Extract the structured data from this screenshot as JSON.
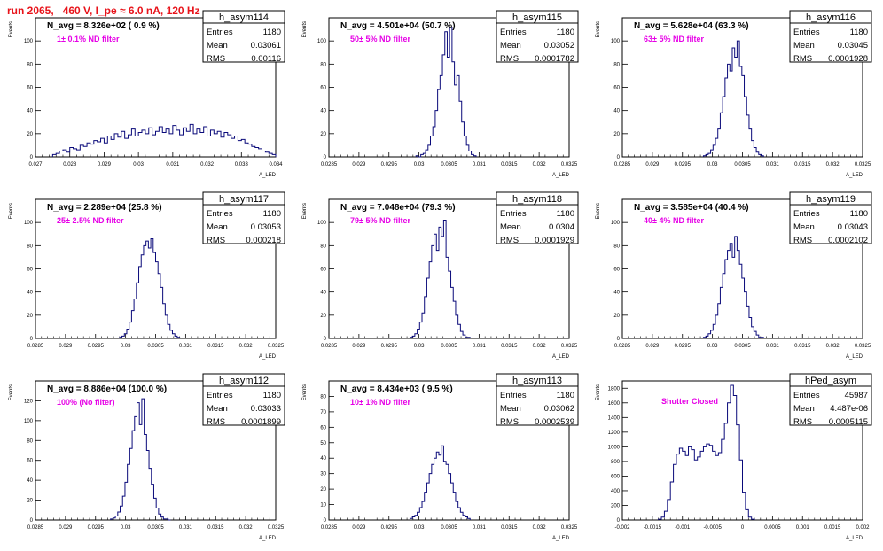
{
  "title": "run 2065,   460 V, I_pe ≈ 6.0 nA, 120 Hz",
  "colors": {
    "hist": "#0a0a7a",
    "annotation": "#e600e6",
    "title": "#e8141b",
    "text": "#000000"
  },
  "chart_data": [
    {
      "type": "histogram",
      "name": "h_asym114",
      "ylabel": "Events",
      "xlabel": "A_LED",
      "navg": "N_avg = 8.326e+02 ( 0.9 %)",
      "note": "1± 0.1% ND filter",
      "stats": [
        [
          "Entries",
          "1180"
        ],
        [
          "Mean",
          "0.03061"
        ],
        [
          "RMS",
          "0.00116"
        ]
      ],
      "xlim": [
        0.027,
        0.034
      ],
      "ylim": [
        0,
        120
      ],
      "xticks": [
        "0.027",
        "0.028",
        "0.029",
        "0.03",
        "0.031",
        "0.032",
        "0.033",
        "0.034"
      ],
      "yticks": [
        "0",
        "20",
        "40",
        "60",
        "80",
        "100"
      ],
      "bins": {
        "start": 0.0275,
        "width": 0.0001,
        "counts": [
          2,
          3,
          5,
          6,
          4,
          8,
          7,
          6,
          10,
          9,
          12,
          11,
          14,
          13,
          16,
          12,
          18,
          15,
          20,
          17,
          22,
          16,
          19,
          24,
          18,
          21,
          23,
          20,
          25,
          19,
          22,
          26,
          21,
          24,
          20,
          27,
          23,
          19,
          25,
          22,
          28,
          20,
          24,
          21,
          26,
          18,
          23,
          20,
          22,
          17,
          21,
          19,
          16,
          18,
          14,
          15,
          12,
          11,
          9,
          8,
          7,
          5,
          4,
          3,
          2
        ]
      }
    },
    {
      "type": "histogram",
      "name": "h_asym115",
      "ylabel": "Events",
      "xlabel": "A_LED",
      "navg": "N_avg = 4.501e+04 (50.7 %)",
      "note": "50± 5% ND filter",
      "stats": [
        [
          "Entries",
          "1180"
        ],
        [
          "Mean",
          "0.03052"
        ],
        [
          "RMS",
          "0.0001782"
        ]
      ],
      "xlim": [
        0.0285,
        0.0325
      ],
      "ylim": [
        0,
        120
      ],
      "xticks": [
        "0.0285",
        "0.029",
        "0.0295",
        "0.03",
        "0.0305",
        "0.031",
        "0.0315",
        "0.032",
        "0.0325"
      ],
      "yticks": [
        "0",
        "20",
        "40",
        "60",
        "80",
        "100"
      ],
      "bins": {
        "start": 0.02995,
        "width": 4e-05,
        "counts": [
          1,
          0,
          2,
          3,
          6,
          10,
          18,
          26,
          40,
          58,
          70,
          88,
          108,
          86,
          112,
          82,
          62,
          70,
          48,
          30,
          18,
          10,
          5,
          2,
          1
        ]
      }
    },
    {
      "type": "histogram",
      "name": "h_asym116",
      "ylabel": "Events",
      "xlabel": "A_LED",
      "navg": "N_avg = 5.628e+04 (63.3 %)",
      "note": "63± 5% ND filter",
      "stats": [
        [
          "Entries",
          "1180"
        ],
        [
          "Mean",
          "0.03045"
        ],
        [
          "RMS",
          "0.0001928"
        ]
      ],
      "xlim": [
        0.0285,
        0.0325
      ],
      "ylim": [
        0,
        120
      ],
      "xticks": [
        "0.0285",
        "0.029",
        "0.0295",
        "0.03",
        "0.0305",
        "0.031",
        "0.0315",
        "0.032",
        "0.0325"
      ],
      "yticks": [
        "0",
        "20",
        "40",
        "60",
        "80",
        "100"
      ],
      "bins": {
        "start": 0.02985,
        "width": 4e-05,
        "counts": [
          1,
          2,
          3,
          6,
          10,
          16,
          24,
          38,
          52,
          68,
          80,
          74,
          94,
          86,
          100,
          78,
          70,
          52,
          36,
          24,
          14,
          8,
          4,
          2,
          1
        ]
      }
    },
    {
      "type": "histogram",
      "name": "h_asym117",
      "ylabel": "Events",
      "xlabel": "A_LED",
      "navg": "N_avg = 2.289e+04 (25.8 %)",
      "note": "25± 2.5% ND filter",
      "stats": [
        [
          "Entries",
          "1180"
        ],
        [
          "Mean",
          "0.03053"
        ],
        [
          "RMS",
          "0.000218"
        ]
      ],
      "xlim": [
        0.0285,
        0.0325
      ],
      "ylim": [
        0,
        120
      ],
      "xticks": [
        "0.0285",
        "0.029",
        "0.0295",
        "0.03",
        "0.0305",
        "0.031",
        "0.0315",
        "0.032",
        "0.0325"
      ],
      "yticks": [
        "0",
        "20",
        "40",
        "60",
        "80",
        "100"
      ],
      "bins": {
        "start": 0.0299,
        "width": 4e-05,
        "counts": [
          1,
          2,
          4,
          8,
          14,
          24,
          34,
          48,
          62,
          72,
          80,
          84,
          78,
          86,
          74,
          66,
          56,
          44,
          30,
          20,
          12,
          7,
          4,
          2,
          1
        ]
      }
    },
    {
      "type": "histogram",
      "name": "h_asym118",
      "ylabel": "Events",
      "xlabel": "A_LED",
      "navg": "N_avg = 7.048e+04 (79.3 %)",
      "note": "79± 5% ND filter",
      "stats": [
        [
          "Entries",
          "1180"
        ],
        [
          "Mean",
          "0.0304"
        ],
        [
          "RMS",
          "0.0001929"
        ]
      ],
      "xlim": [
        0.0285,
        0.0325
      ],
      "ylim": [
        0,
        120
      ],
      "xticks": [
        "0.0285",
        "0.029",
        "0.0295",
        "0.03",
        "0.0305",
        "0.031",
        "0.0315",
        "0.032",
        "0.0325"
      ],
      "yticks": [
        "0",
        "20",
        "40",
        "60",
        "80",
        "100"
      ],
      "bins": {
        "start": 0.02985,
        "width": 4e-05,
        "counts": [
          1,
          2,
          4,
          8,
          14,
          22,
          36,
          52,
          66,
          80,
          90,
          76,
          96,
          88,
          102,
          70,
          58,
          44,
          32,
          20,
          12,
          6,
          3,
          1,
          1
        ]
      }
    },
    {
      "type": "histogram",
      "name": "h_asym119",
      "ylabel": "Events",
      "xlabel": "A_LED",
      "navg": "N_avg = 3.585e+04 (40.4 %)",
      "note": "40± 4% ND filter",
      "stats": [
        [
          "Entries",
          "1180"
        ],
        [
          "Mean",
          "0.03043"
        ],
        [
          "RMS",
          "0.0002102"
        ]
      ],
      "xlim": [
        0.0285,
        0.0325
      ],
      "ylim": [
        0,
        120
      ],
      "xticks": [
        "0.0285",
        "0.029",
        "0.0295",
        "0.03",
        "0.0305",
        "0.031",
        "0.0315",
        "0.032",
        "0.0325"
      ],
      "yticks": [
        "0",
        "20",
        "40",
        "60",
        "80",
        "100"
      ],
      "bins": {
        "start": 0.02985,
        "width": 4e-05,
        "counts": [
          1,
          2,
          4,
          7,
          12,
          20,
          30,
          44,
          56,
          68,
          76,
          82,
          70,
          88,
          76,
          64,
          52,
          40,
          28,
          18,
          10,
          6,
          3,
          1,
          1
        ]
      }
    },
    {
      "type": "histogram",
      "name": "h_asym112",
      "ylabel": "Events",
      "xlabel": "A_LED",
      "navg": "N_avg = 8.886e+04 (100.0 %)",
      "note": "100% (No filter)",
      "stats": [
        [
          "Entries",
          "1180"
        ],
        [
          "Mean",
          "0.03033"
        ],
        [
          "RMS",
          "0.0001899"
        ]
      ],
      "xlim": [
        0.0285,
        0.0325
      ],
      "ylim": [
        0,
        140
      ],
      "xticks": [
        "0.0285",
        "0.029",
        "0.0295",
        "0.03",
        "0.0305",
        "0.031",
        "0.0315",
        "0.032",
        "0.0325"
      ],
      "yticks": [
        "0",
        "20",
        "40",
        "60",
        "80",
        "100",
        "120"
      ],
      "bins": {
        "start": 0.02975,
        "width": 4e-05,
        "counts": [
          1,
          2,
          4,
          8,
          14,
          24,
          38,
          56,
          72,
          90,
          104,
          118,
          96,
          122,
          86,
          70,
          52,
          36,
          22,
          12,
          6,
          3,
          1,
          1,
          0
        ]
      }
    },
    {
      "type": "histogram",
      "name": "h_asym113",
      "ylabel": "Events",
      "xlabel": "A_LED",
      "navg": "N_avg = 8.434e+03 ( 9.5 %)",
      "note": "10± 1% ND filter",
      "stats": [
        [
          "Entries",
          "1180"
        ],
        [
          "Mean",
          "0.03062"
        ],
        [
          "RMS",
          "0.0002539"
        ]
      ],
      "xlim": [
        0.0285,
        0.0325
      ],
      "ylim": [
        0,
        90
      ],
      "xticks": [
        "0.0285",
        "0.029",
        "0.0295",
        "0.03",
        "0.0305",
        "0.031",
        "0.0315",
        "0.032",
        "0.0325"
      ],
      "yticks": [
        "0",
        "10",
        "20",
        "30",
        "40",
        "50",
        "60",
        "70",
        "80"
      ],
      "bins": {
        "start": 0.02985,
        "width": 4e-05,
        "counts": [
          1,
          2,
          3,
          5,
          8,
          12,
          18,
          24,
          30,
          36,
          40,
          44,
          42,
          48,
          38,
          36,
          30,
          24,
          18,
          12,
          8,
          5,
          3,
          2,
          1
        ]
      }
    },
    {
      "type": "histogram",
      "name": "hPed_asym",
      "ylabel": "Events",
      "xlabel": "A_LED",
      "navg": "",
      "note": "Shutter Closed",
      "stats": [
        [
          "Entries",
          "45987"
        ],
        [
          "Mean",
          "4.487e-06"
        ],
        [
          "RMS",
          "0.0005115"
        ]
      ],
      "xlim": [
        -0.002,
        0.002
      ],
      "ylim": [
        0,
        1900
      ],
      "xticks": [
        "-0.002",
        "-0.0015",
        "-0.001",
        "-0.0005",
        "0",
        "0.0005",
        "0.001",
        "0.0015",
        "0.002"
      ],
      "yticks": [
        "0",
        "200",
        "400",
        "600",
        "800",
        "1000",
        "1200",
        "1400",
        "1600",
        "1800"
      ],
      "bins": {
        "start": -0.0014,
        "width": 5e-05,
        "counts": [
          10,
          40,
          120,
          280,
          520,
          760,
          900,
          980,
          940,
          880,
          1000,
          960,
          820,
          860,
          940,
          1000,
          1040,
          1020,
          940,
          880,
          920,
          1100,
          1320,
          1600,
          1840,
          1700,
          1300,
          820,
          380,
          140,
          40,
          10
        ]
      }
    }
  ]
}
